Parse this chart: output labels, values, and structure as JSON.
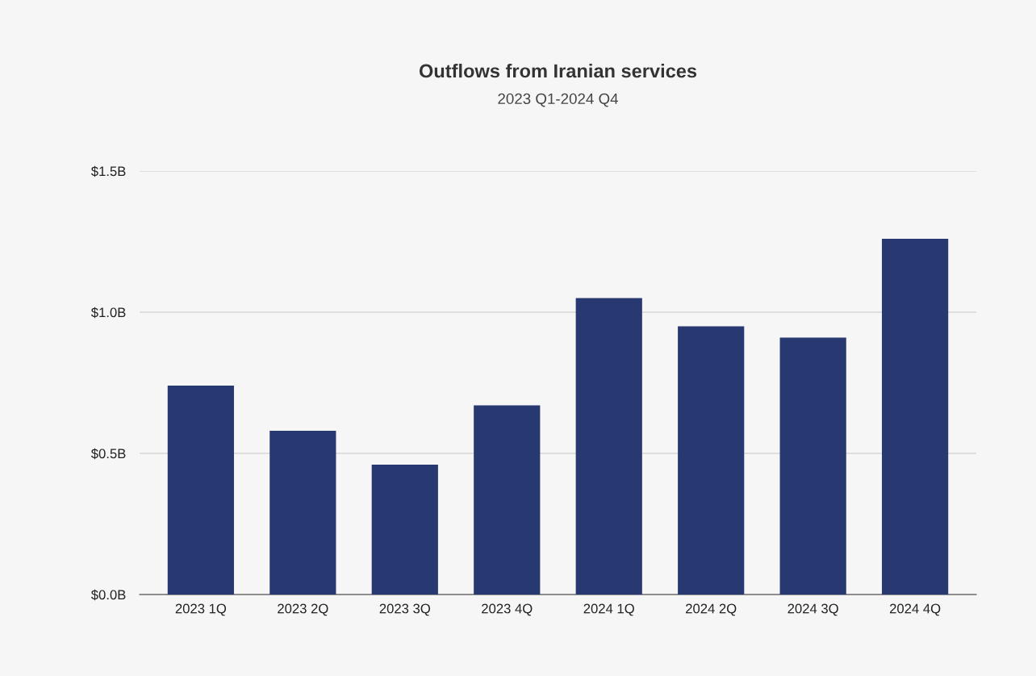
{
  "chart_data": {
    "type": "bar",
    "title": "Outflows from Iranian services",
    "subtitle": "2023 Q1-2024 Q4",
    "categories": [
      "2023 1Q",
      "2023 2Q",
      "2023 3Q",
      "2023 4Q",
      "2024 1Q",
      "2024 2Q",
      "2024 3Q",
      "2024 4Q"
    ],
    "values": [
      0.74,
      0.58,
      0.46,
      0.67,
      1.05,
      0.95,
      0.91,
      1.26
    ],
    "color": "#283870",
    "ylim": [
      0,
      1.5
    ],
    "yticks": [
      {
        "value": 0,
        "label": "$0.0B"
      },
      {
        "value": 0.5,
        "label": "$0.5B"
      },
      {
        "value": 1.0,
        "label": "$1.0B"
      },
      {
        "value": 1.5,
        "label": "$1.5B"
      }
    ],
    "grid": "y"
  }
}
